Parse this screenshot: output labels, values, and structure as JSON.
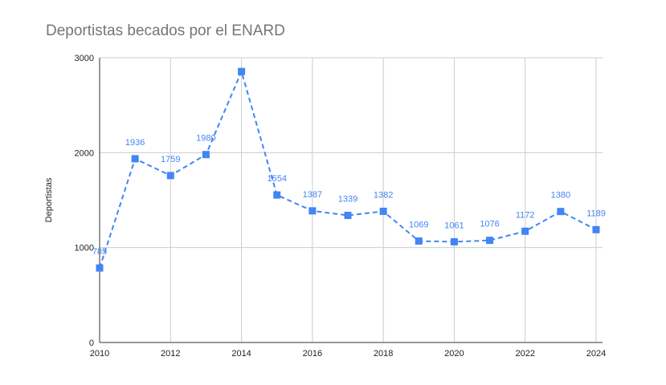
{
  "chart": {
    "title": "Deportistas becados por el ENARD"
  },
  "chart_data": {
    "type": "line",
    "title": "Deportistas becados por el ENARD",
    "xlabel": "",
    "ylabel": "Deportistas",
    "x": [
      2010,
      2011,
      2012,
      2013,
      2014,
      2015,
      2016,
      2017,
      2018,
      2019,
      2020,
      2021,
      2022,
      2023,
      2024
    ],
    "series": [
      {
        "values": [
          785,
          1936,
          1759,
          1980,
          2855,
          1554,
          1387,
          1339,
          1382,
          1069,
          1061,
          1076,
          1172,
          1380,
          1189
        ],
        "data_labels": [
          "785",
          "1936",
          "1759",
          "1980",
          "",
          "1554",
          "1387",
          "1339",
          "1382",
          "1069",
          "1061",
          "1076",
          "1172",
          "1380",
          "1189"
        ]
      }
    ],
    "x_ticks": [
      "2010",
      "2012",
      "2014",
      "2016",
      "2018",
      "2020",
      "2022",
      "2024"
    ],
    "y_ticks": [
      "0",
      "1000",
      "2000",
      "3000"
    ],
    "xlim": [
      2010,
      2024
    ],
    "ylim": [
      0,
      3000
    ],
    "grid": true,
    "legend": "none",
    "line_style": "dashed",
    "marker": "square",
    "colors": {
      "series": "#4285f4",
      "grid": "#cccccc",
      "axis": "#333333",
      "title": "#757575",
      "text": "#222222"
    }
  }
}
